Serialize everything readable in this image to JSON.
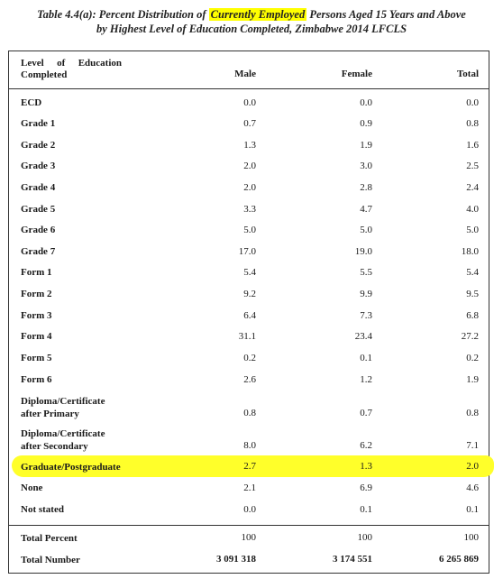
{
  "title": {
    "line1_pre": "Table 4.4(a):  Percent Distribution of ",
    "line1_highlight": "Currently Employed",
    "line1_post": " Persons Aged 15 Years and Above",
    "line2": "by Highest Level of Education Completed, Zimbabwe 2014 LFCLS"
  },
  "table": {
    "headers": {
      "level": "Level of Education Completed",
      "male": "Male",
      "female": "Female",
      "total": "Total"
    },
    "rows": [
      {
        "label": "ECD",
        "male": "0.0",
        "female": "0.0",
        "total": "0.0"
      },
      {
        "label": "Grade 1",
        "male": "0.7",
        "female": "0.9",
        "total": "0.8"
      },
      {
        "label": "Grade 2",
        "male": "1.3",
        "female": "1.9",
        "total": "1.6"
      },
      {
        "label": "Grade 3",
        "male": "2.0",
        "female": "3.0",
        "total": "2.5"
      },
      {
        "label": "Grade 4",
        "male": "2.0",
        "female": "2.8",
        "total": "2.4"
      },
      {
        "label": "Grade 5",
        "male": "3.3",
        "female": "4.7",
        "total": "4.0"
      },
      {
        "label": "Grade 6",
        "male": "5.0",
        "female": "5.0",
        "total": "5.0"
      },
      {
        "label": "Grade 7",
        "male": "17.0",
        "female": "19.0",
        "total": "18.0"
      },
      {
        "label": "Form 1",
        "male": "5.4",
        "female": "5.5",
        "total": "5.4"
      },
      {
        "label": "Form 2",
        "male": "9.2",
        "female": "9.9",
        "total": "9.5"
      },
      {
        "label": "Form 3",
        "male": "6.4",
        "female": "7.3",
        "total": "6.8"
      },
      {
        "label": "Form 4",
        "male": "31.1",
        "female": "23.4",
        "total": "27.2"
      },
      {
        "label": "Form 5",
        "male": "0.2",
        "female": "0.1",
        "total": "0.2"
      },
      {
        "label": "Form 6",
        "male": "2.6",
        "female": "1.2",
        "total": "1.9"
      },
      {
        "label_line1": "Diploma/Certificate",
        "label_line2": "after Primary",
        "male": "0.8",
        "female": "0.7",
        "total": "0.8"
      },
      {
        "label_line1": "Diploma/Certificate",
        "label_line2": "after Secondary",
        "male": "8.0",
        "female": "6.2",
        "total": "7.1"
      },
      {
        "label": "Graduate/Postgraduate",
        "male": "2.7",
        "female": "1.3",
        "total": "2.0",
        "highlighted": true
      },
      {
        "label": "None",
        "male": "2.1",
        "female": "6.9",
        "total": "4.6"
      },
      {
        "label": "Not stated",
        "male": "0.0",
        "female": "0.1",
        "total": "0.1"
      }
    ],
    "totals": [
      {
        "label": "Total Percent",
        "male": "100",
        "female": "100",
        "total": "100"
      },
      {
        "label": "Total Number",
        "male": "3 091 318",
        "female": "3 174 551",
        "total": "6 265 869"
      }
    ]
  },
  "colors": {
    "highlight": "#ffff00",
    "border": "#333333"
  }
}
